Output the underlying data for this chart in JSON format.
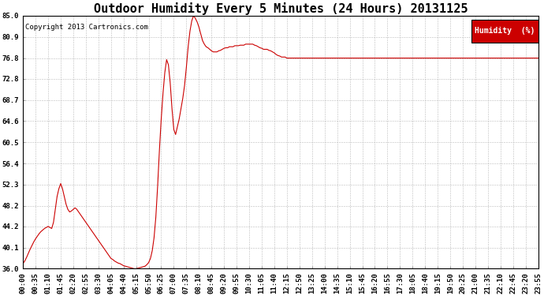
{
  "title": "Outdoor Humidity Every 5 Minutes (24 Hours) 20131125",
  "copyright": "Copyright 2013 Cartronics.com",
  "legend_label": "Humidity  (%)",
  "legend_bg": "#cc0000",
  "legend_text_color": "#ffffff",
  "line_color": "#cc0000",
  "background_color": "#ffffff",
  "grid_color": "#bbbbbb",
  "ylim": [
    36.0,
    85.0
  ],
  "yticks": [
    36.0,
    40.1,
    44.2,
    48.2,
    52.3,
    56.4,
    60.5,
    64.6,
    68.7,
    72.8,
    76.8,
    80.9,
    85.0
  ],
  "title_fontsize": 11,
  "tick_fontsize": 6.5,
  "copyright_fontsize": 6.5,
  "humidity_values": [
    37.0,
    37.5,
    38.2,
    39.0,
    39.8,
    40.5,
    41.2,
    41.8,
    42.3,
    42.8,
    43.2,
    43.5,
    43.8,
    44.0,
    44.2,
    44.0,
    43.8,
    45.0,
    47.5,
    50.0,
    51.5,
    52.5,
    51.5,
    50.0,
    48.5,
    47.5,
    47.0,
    47.2,
    47.5,
    47.8,
    47.5,
    47.0,
    46.5,
    46.0,
    45.5,
    45.0,
    44.5,
    44.0,
    43.5,
    43.0,
    42.5,
    42.0,
    41.5,
    41.0,
    40.5,
    40.0,
    39.5,
    39.0,
    38.5,
    38.0,
    37.8,
    37.5,
    37.3,
    37.1,
    37.0,
    36.8,
    36.6,
    36.5,
    36.4,
    36.3,
    36.2,
    36.1,
    36.0,
    36.0,
    36.1,
    36.2,
    36.3,
    36.4,
    36.5,
    36.8,
    37.2,
    38.0,
    39.5,
    42.0,
    46.0,
    52.0,
    59.0,
    65.0,
    70.0,
    74.0,
    76.5,
    75.5,
    72.0,
    67.0,
    63.0,
    62.0,
    63.5,
    65.0,
    67.0,
    69.0,
    71.5,
    75.0,
    79.0,
    82.0,
    84.0,
    85.0,
    84.5,
    83.8,
    82.8,
    81.5,
    80.2,
    79.5,
    79.0,
    78.8,
    78.5,
    78.2,
    78.0,
    78.0,
    78.0,
    78.2,
    78.3,
    78.5,
    78.7,
    78.8,
    78.8,
    79.0,
    79.0,
    79.0,
    79.2,
    79.2,
    79.2,
    79.3,
    79.3,
    79.3,
    79.5,
    79.5,
    79.5,
    79.5,
    79.5,
    79.3,
    79.2,
    79.0,
    78.8,
    78.7,
    78.5,
    78.5,
    78.5,
    78.3,
    78.2,
    78.0,
    77.8,
    77.5,
    77.3,
    77.2,
    77.0,
    77.0,
    77.0,
    76.8,
    76.8,
    76.8,
    76.8,
    76.8,
    76.8,
    76.8,
    76.8,
    76.8,
    76.8,
    76.8,
    76.8,
    76.8,
    76.8,
    76.8,
    76.8,
    76.8,
    76.8,
    76.8,
    76.8,
    76.8,
    76.8,
    76.8,
    76.8,
    76.8,
    76.8,
    76.8,
    76.8,
    76.8,
    76.8,
    76.8,
    76.8,
    76.8,
    76.8,
    76.8,
    76.8,
    76.8,
    76.8,
    76.8,
    76.8,
    76.8,
    76.8,
    76.8,
    76.8,
    76.8,
    76.8,
    76.8,
    76.8,
    76.8,
    76.8,
    76.8,
    76.8,
    76.8,
    76.8,
    76.8,
    76.8,
    76.8,
    76.8,
    76.8,
    76.8,
    76.8,
    76.8,
    76.8,
    76.8,
    76.8,
    76.8,
    76.8,
    76.8,
    76.8,
    76.8,
    76.8,
    76.8,
    76.8,
    76.8,
    76.8,
    76.8,
    76.8,
    76.8,
    76.8,
    76.8,
    76.8,
    76.8,
    76.8,
    76.8,
    76.8,
    76.8,
    76.8,
    76.8,
    76.8,
    76.8,
    76.8,
    76.8,
    76.8,
    76.8,
    76.8,
    76.8,
    76.8,
    76.8,
    76.8,
    76.8,
    76.8,
    76.8,
    76.8,
    76.8,
    76.8,
    76.8,
    76.8,
    76.8,
    76.8,
    76.8,
    76.8,
    76.8,
    76.8,
    76.8,
    76.8,
    76.8,
    76.8,
    76.8,
    76.8,
    76.8,
    76.8,
    76.8,
    76.8,
    76.8,
    76.8,
    76.8,
    76.8,
    76.8,
    76.8,
    76.8,
    76.8,
    76.8,
    76.8,
    76.8,
    76.8,
    76.8,
    76.8,
    76.8,
    76.8,
    76.8,
    76.8
  ],
  "xtick_labels": [
    "00:00",
    "00:35",
    "01:10",
    "01:45",
    "02:20",
    "02:55",
    "03:30",
    "04:05",
    "04:40",
    "05:15",
    "05:50",
    "06:25",
    "07:00",
    "07:35",
    "08:10",
    "08:45",
    "09:20",
    "09:55",
    "10:30",
    "11:05",
    "11:40",
    "12:15",
    "12:50",
    "13:25",
    "14:00",
    "14:35",
    "15:10",
    "15:45",
    "16:20",
    "16:55",
    "17:30",
    "18:05",
    "18:40",
    "19:15",
    "19:50",
    "20:25",
    "21:00",
    "21:35",
    "22:10",
    "22:45",
    "23:20",
    "23:55"
  ]
}
